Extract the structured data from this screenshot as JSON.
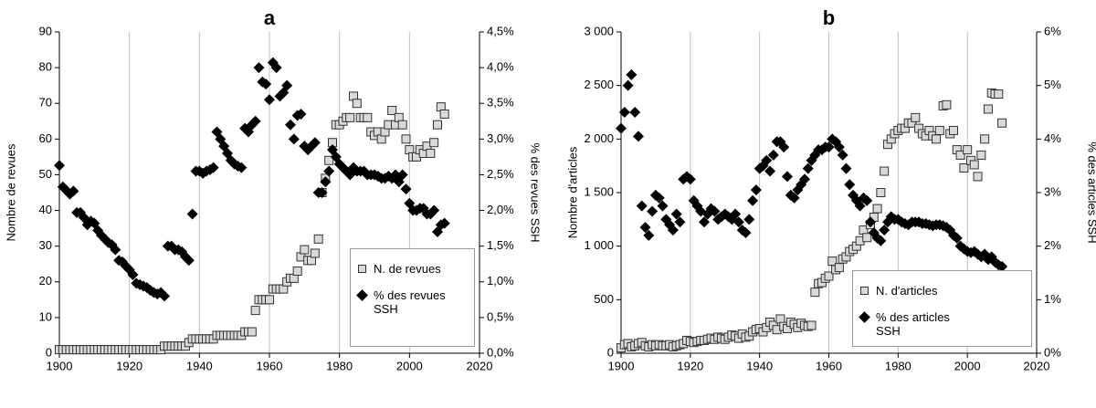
{
  "chart_data": [
    {
      "type": "scatter",
      "title": "a",
      "ylabel": "Nombre de revues",
      "y2label": "% des revues SSH",
      "x": [
        1900,
        1901,
        1902,
        1903,
        1904,
        1905,
        1906,
        1907,
        1908,
        1909,
        1910,
        1911,
        1912,
        1913,
        1914,
        1915,
        1916,
        1917,
        1918,
        1919,
        1920,
        1921,
        1922,
        1923,
        1924,
        1925,
        1926,
        1927,
        1928,
        1929,
        1930,
        1931,
        1932,
        1933,
        1934,
        1935,
        1936,
        1937,
        1938,
        1939,
        1940,
        1941,
        1942,
        1943,
        1944,
        1945,
        1946,
        1947,
        1948,
        1949,
        1950,
        1951,
        1952,
        1953,
        1954,
        1955,
        1956,
        1957,
        1958,
        1959,
        1960,
        1961,
        1962,
        1963,
        1964,
        1965,
        1966,
        1967,
        1968,
        1969,
        1970,
        1971,
        1972,
        1973,
        1974,
        1975,
        1976,
        1977,
        1978,
        1979,
        1980,
        1981,
        1982,
        1983,
        1984,
        1985,
        1986,
        1987,
        1988,
        1989,
        1990,
        1991,
        1992,
        1993,
        1994,
        1995,
        1996,
        1997,
        1998,
        1999,
        2000,
        2001,
        2002,
        2003,
        2004,
        2005,
        2006,
        2007,
        2008,
        2009,
        2010
      ],
      "series": [
        {
          "name": "N. de revues",
          "color": "#d9d9d9",
          "marker": "square",
          "values": [
            1,
            1,
            1,
            1,
            1,
            1,
            1,
            1,
            1,
            1,
            1,
            1,
            1,
            1,
            1,
            1,
            1,
            1,
            1,
            1,
            1,
            1,
            1,
            1,
            1,
            1,
            1,
            1,
            1,
            1,
            2,
            2,
            2,
            2,
            2,
            2,
            2,
            3,
            4,
            4,
            4,
            4,
            4,
            4,
            4,
            5,
            5,
            5,
            5,
            5,
            5,
            5,
            5,
            6,
            6,
            6,
            12,
            15,
            15,
            15,
            15,
            18,
            18,
            18,
            18,
            20,
            21,
            21,
            23,
            27,
            29,
            26,
            26,
            28,
            32,
            45,
            49,
            54,
            59,
            64,
            64,
            65,
            66,
            66,
            72,
            70,
            66,
            66,
            66,
            62,
            61,
            62,
            60,
            62,
            64,
            68,
            64,
            66,
            64,
            60,
            57,
            55,
            55,
            57,
            56,
            58,
            56,
            59,
            64,
            69,
            67
          ]
        },
        {
          "name": "% des revues SSH",
          "color": "#000000",
          "marker": "diamond",
          "axis": "y2",
          "values": [
            2.63,
            2.33,
            2.28,
            2.23,
            2.27,
            1.97,
            1.97,
            1.9,
            1.8,
            1.85,
            1.82,
            1.72,
            1.65,
            1.6,
            1.55,
            1.52,
            1.45,
            1.3,
            1.28,
            1.22,
            1.17,
            1.1,
            0.98,
            0.96,
            0.94,
            0.92,
            0.88,
            0.85,
            0.83,
            0.85,
            0.8,
            1.5,
            1.5,
            1.45,
            1.45,
            1.42,
            1.35,
            1.3,
            1.95,
            2.55,
            2.55,
            2.52,
            2.55,
            2.57,
            2.6,
            3.1,
            3.0,
            2.9,
            2.8,
            2.7,
            2.65,
            2.62,
            2.6,
            3.15,
            3.1,
            3.2,
            3.25,
            4.0,
            3.8,
            3.77,
            3.55,
            4.07,
            4.0,
            3.6,
            3.65,
            3.75,
            3.2,
            3.0,
            3.33,
            3.35,
            2.9,
            2.85,
            2.9,
            2.95,
            2.25,
            2.25,
            2.4,
            2.55,
            2.85,
            2.75,
            2.65,
            2.6,
            2.55,
            2.5,
            2.6,
            2.55,
            2.55,
            2.55,
            2.5,
            2.5,
            2.5,
            2.48,
            2.45,
            2.45,
            2.48,
            2.45,
            2.5,
            2.4,
            2.5,
            2.3,
            2.1,
            2.0,
            2.0,
            2.03,
            2.03,
            1.95,
            1.95,
            2.0,
            1.7,
            1.8,
            1.82
          ]
        }
      ],
      "xlim": [
        1900,
        2020
      ],
      "xticks": [
        1900,
        1920,
        1940,
        1960,
        1980,
        2000,
        2020
      ],
      "ylim": [
        0,
        90
      ],
      "yticks": [
        0,
        10,
        20,
        30,
        40,
        50,
        60,
        70,
        80,
        90
      ],
      "y2lim": [
        0,
        4.5
      ],
      "y2ticks": [
        {
          "value": 0,
          "label": "0,0%"
        },
        {
          "value": 0.5,
          "label": "0,5%"
        },
        {
          "value": 1,
          "label": "1,0%"
        },
        {
          "value": 1.5,
          "label": "1,5%"
        },
        {
          "value": 2,
          "label": "2,0%"
        },
        {
          "value": 2.5,
          "label": "2,5%"
        },
        {
          "value": 3,
          "label": "3,0%"
        },
        {
          "value": 3.5,
          "label": "3,5%"
        },
        {
          "value": 4,
          "label": "4,0%"
        },
        {
          "value": 4.5,
          "label": "4,5%"
        }
      ],
      "grid": "x",
      "legend": "lower right"
    },
    {
      "type": "scatter",
      "title": "b",
      "ylabel": "Nombre d'articles",
      "y2label": "% des articles SSH",
      "x": [
        1900,
        1901,
        1902,
        1903,
        1904,
        1905,
        1906,
        1907,
        1908,
        1909,
        1910,
        1911,
        1912,
        1913,
        1914,
        1915,
        1916,
        1917,
        1918,
        1919,
        1920,
        1921,
        1922,
        1923,
        1924,
        1925,
        1926,
        1927,
        1928,
        1929,
        1930,
        1931,
        1932,
        1933,
        1934,
        1935,
        1936,
        1937,
        1938,
        1939,
        1940,
        1941,
        1942,
        1943,
        1944,
        1945,
        1946,
        1947,
        1948,
        1949,
        1950,
        1951,
        1952,
        1953,
        1954,
        1955,
        1956,
        1957,
        1958,
        1959,
        1960,
        1961,
        1962,
        1963,
        1964,
        1965,
        1966,
        1967,
        1968,
        1969,
        1970,
        1971,
        1972,
        1973,
        1974,
        1975,
        1976,
        1977,
        1978,
        1979,
        1980,
        1981,
        1982,
        1983,
        1984,
        1985,
        1986,
        1987,
        1988,
        1989,
        1990,
        1991,
        1992,
        1993,
        1994,
        1995,
        1996,
        1997,
        1998,
        1999,
        2000,
        2001,
        2002,
        2003,
        2004,
        2005,
        2006,
        2007,
        2008,
        2009,
        2010
      ],
      "series": [
        {
          "name": "N. d'articles",
          "color": "#d9d9d9",
          "marker": "square",
          "values": [
            50,
            80,
            90,
            60,
            70,
            90,
            100,
            70,
            60,
            80,
            70,
            80,
            70,
            70,
            80,
            60,
            70,
            80,
            90,
            120,
            110,
            100,
            110,
            120,
            120,
            130,
            140,
            130,
            150,
            140,
            130,
            150,
            170,
            160,
            140,
            180,
            150,
            160,
            200,
            220,
            230,
            200,
            240,
            290,
            260,
            220,
            320,
            250,
            230,
            290,
            270,
            240,
            280,
            260,
            250,
            260,
            570,
            650,
            660,
            700,
            720,
            860,
            780,
            800,
            880,
            900,
            950,
            970,
            1000,
            1050,
            1150,
            1080,
            1200,
            1270,
            1350,
            1500,
            1700,
            1950,
            2000,
            2050,
            2080,
            2100,
            2100,
            2150,
            2150,
            2200,
            2100,
            2050,
            2030,
            2080,
            2030,
            2000,
            2080,
            2310,
            2320,
            2050,
            2080,
            1900,
            1850,
            1730,
            1900,
            1800,
            1760,
            1650,
            1850,
            2000,
            2280,
            2430,
            2420,
            2420,
            2150
          ]
        },
        {
          "name": "% des articles SSH",
          "color": "#000000",
          "marker": "diamond",
          "axis": "y2",
          "values": [
            4.2,
            4.5,
            5.0,
            5.2,
            4.5,
            4.05,
            2.75,
            2.35,
            2.2,
            2.65,
            2.95,
            2.9,
            2.75,
            2.5,
            2.4,
            2.3,
            2.6,
            2.45,
            3.25,
            3.3,
            3.25,
            2.85,
            2.75,
            2.65,
            2.45,
            2.6,
            2.7,
            2.65,
            2.5,
            2.55,
            2.6,
            2.55,
            2.5,
            2.6,
            2.45,
            2.3,
            2.25,
            2.5,
            2.85,
            3.05,
            3.45,
            3.5,
            3.6,
            3.4,
            3.7,
            3.95,
            3.95,
            3.85,
            3.3,
            2.95,
            2.9,
            3.05,
            3.15,
            3.25,
            3.45,
            3.6,
            3.7,
            3.8,
            3.8,
            3.85,
            3.85,
            4.0,
            3.95,
            3.85,
            3.7,
            3.45,
            3.15,
            2.95,
            2.85,
            2.75,
            2.9,
            2.85,
            2.45,
            2.25,
            2.15,
            2.1,
            2.3,
            2.45,
            2.55,
            2.5,
            2.5,
            2.45,
            2.42,
            2.4,
            2.45,
            2.45,
            2.45,
            2.42,
            2.42,
            2.4,
            2.38,
            2.4,
            2.4,
            2.38,
            2.35,
            2.3,
            2.2,
            2.15,
            2.0,
            1.95,
            1.9,
            1.88,
            1.9,
            1.85,
            1.8,
            1.85,
            1.75,
            1.8,
            1.7,
            1.65,
            1.62
          ]
        }
      ],
      "xlim": [
        1900,
        2020
      ],
      "xticks": [
        1900,
        1920,
        1940,
        1960,
        1980,
        2000,
        2020
      ],
      "ylim": [
        0,
        3000
      ],
      "yticks": [
        0,
        500,
        {
          "value": 1000,
          "label": "1 000"
        },
        {
          "value": 1500,
          "label": "1 500"
        },
        {
          "value": 2000,
          "label": "2 000"
        },
        {
          "value": 2500,
          "label": "2 500"
        },
        {
          "value": 3000,
          "label": "3 000"
        }
      ],
      "y2lim": [
        0,
        6
      ],
      "y2ticks": [
        {
          "value": 0,
          "label": "0%"
        },
        {
          "value": 1,
          "label": "1%"
        },
        {
          "value": 2,
          "label": "2%"
        },
        {
          "value": 3,
          "label": "3%"
        },
        {
          "value": 4,
          "label": "4%"
        },
        {
          "value": 5,
          "label": "5%"
        },
        {
          "value": 6,
          "label": "6%"
        }
      ],
      "grid": "x",
      "legend": "lower right"
    }
  ]
}
